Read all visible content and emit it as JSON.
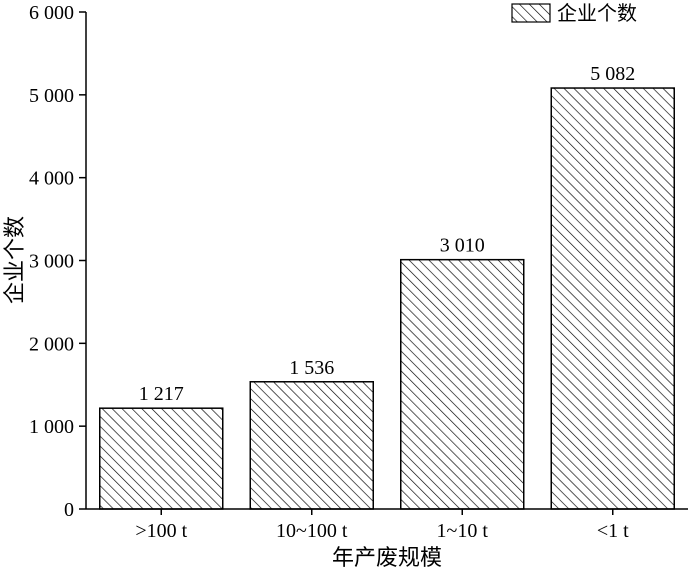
{
  "chart_data": {
    "type": "bar",
    "categories": [
      ">100 t",
      "10~100 t",
      "1~10 t",
      "<1 t"
    ],
    "series": [
      {
        "name": "企业个数",
        "values": [
          1217,
          1536,
          3010,
          5082
        ]
      }
    ],
    "data_labels": [
      "1 217",
      "1 536",
      "3 010",
      "5 082"
    ],
    "xlabel": "年产废规模",
    "ylabel": "企业个数",
    "ylim": [
      0,
      6000
    ],
    "yticks": [
      0,
      1000,
      2000,
      3000,
      4000,
      5000,
      6000
    ],
    "ytick_labels": [
      "0",
      "1 000",
      "2 000",
      "3 000",
      "4 000",
      "5 000",
      "6 000"
    ],
    "legend": {
      "position": "top-right",
      "fill": "diagonal-hatch"
    },
    "grid": false,
    "colors": {
      "stroke": "#000000",
      "hatch": "#000000",
      "background": "#ffffff"
    }
  }
}
